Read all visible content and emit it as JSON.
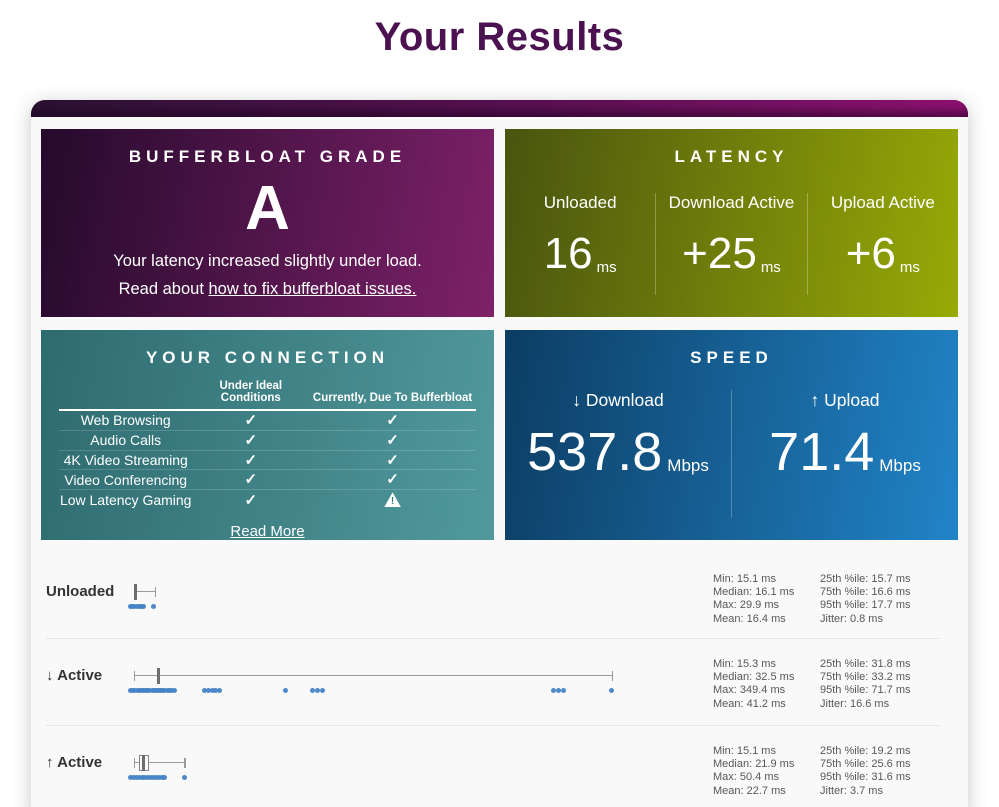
{
  "page": {
    "title": "Your Results"
  },
  "colors": {
    "title_text": "#4b1150",
    "grade_card_gradient": [
      "#250a2c",
      "#7e2169"
    ],
    "latency_card_gradient": [
      "#49540f",
      "#97aa06"
    ],
    "connection_card_gradient": [
      "#2e6b6f",
      "#51999d"
    ],
    "speed_card_gradient": [
      "#0c3d63",
      "#2184c8"
    ],
    "top_bar_gradient": [
      "#2b1133",
      "#8d1170"
    ],
    "dot_blue": "#4583c6"
  },
  "icons": {
    "check": "✓",
    "warning": "!",
    "down_arrow": "↓",
    "up_arrow": "↑"
  },
  "grade_card": {
    "title": "BUFFERBLOAT GRADE",
    "grade": "A",
    "description": "Your latency increased slightly under load.",
    "link_prefix": "Read about ",
    "link_text": "how to fix bufferbloat issues."
  },
  "latency_card": {
    "title": "LATENCY",
    "columns": [
      {
        "label": "Unloaded",
        "value": "16",
        "unit": "ms"
      },
      {
        "label": "Download Active",
        "value": "+25",
        "unit": "ms"
      },
      {
        "label": "Upload Active",
        "value": "+6",
        "unit": "ms"
      }
    ]
  },
  "connection_card": {
    "title": "YOUR CONNECTION",
    "col_headers": [
      "Under Ideal Conditions",
      "Currently, Due To Bufferbloat"
    ],
    "rows": [
      {
        "label": "Web Browsing",
        "ideal": "check",
        "current": "check"
      },
      {
        "label": "Audio Calls",
        "ideal": "check",
        "current": "check"
      },
      {
        "label": "4K Video Streaming",
        "ideal": "check",
        "current": "check"
      },
      {
        "label": "Video Conferencing",
        "ideal": "check",
        "current": "check"
      },
      {
        "label": "Low Latency Gaming",
        "ideal": "check",
        "current": "warning"
      }
    ],
    "read_more": "Read More"
  },
  "speed_card": {
    "title": "SPEED",
    "columns": [
      {
        "arrow": "↓",
        "label": "Download",
        "value": "537.8",
        "unit": "Mbps"
      },
      {
        "arrow": "↑",
        "label": "Upload",
        "value": "71.4",
        "unit": "Mbps"
      }
    ]
  },
  "chart_data": {
    "type": "boxplot",
    "unit": "ms",
    "axis": {
      "render_min_ms": 11.2,
      "render_max_ms": 416.8,
      "grid": false
    },
    "rows": [
      {
        "label": "Unloaded",
        "box": {
          "min": 15.1,
          "q25": 15.7,
          "median": 16.1,
          "q75": 16.6,
          "max": 29.9
        },
        "stats": {
          "min": 15.1,
          "median": 16.1,
          "max": 29.9,
          "mean": 16.4,
          "p25": 15.7,
          "p75": 16.6,
          "p95": 17.7,
          "jitter": 0.8
        },
        "dots": [
          13,
          14.5,
          16,
          17.5,
          19,
          20.5,
          22,
          28.7
        ],
        "stats_col1": [
          "Min: 15.1 ms",
          "Median: 16.1 ms",
          "Max: 29.9 ms",
          "Mean: 16.4 ms"
        ],
        "stats_col2": [
          "25th %ile: 15.7 ms",
          "75th %ile: 16.6 ms",
          "95th %ile: 17.7 ms",
          "Jitter: 0.8 ms"
        ]
      },
      {
        "label": "↓ Active",
        "box": {
          "min": 15.3,
          "q25": 31.8,
          "median": 32.5,
          "q75": 33.2,
          "max": 349.4
        },
        "stats": {
          "min": 15.3,
          "median": 32.5,
          "max": 349.4,
          "mean": 41.2,
          "p25": 31.8,
          "p75": 33.2,
          "p95": 71.7,
          "jitter": 16.6
        },
        "dots": [
          13,
          14.5,
          16,
          17.5,
          19,
          20.5,
          22,
          23.5,
          25,
          26.5,
          28,
          29.5,
          31,
          32.5,
          34,
          35.5,
          37,
          38.5,
          40,
          41.5,
          44,
          65,
          67.5,
          70,
          72.5,
          75,
          121,
          140,
          143.5,
          147,
          308.5,
          312,
          315.5,
          349
        ],
        "stats_col1": [
          "Min: 15.3 ms",
          "Median: 32.5 ms",
          "Max: 349.4 ms",
          "Mean: 41.2 ms"
        ],
        "stats_col2": [
          "25th %ile: 31.8 ms",
          "75th %ile: 33.2 ms",
          "95th %ile: 71.7 ms",
          "Jitter: 16.6 ms"
        ]
      },
      {
        "label": "↑ Active",
        "box": {
          "min": 15.1,
          "q25": 19.2,
          "median": 21.9,
          "q75": 25.6,
          "max": 50.4
        },
        "stats": {
          "min": 15.1,
          "median": 21.9,
          "max": 50.4,
          "mean": 22.7,
          "p25": 19.2,
          "p75": 25.6,
          "p95": 31.6,
          "jitter": 3.7
        },
        "dots": [
          13,
          15,
          17,
          19,
          21,
          23,
          25,
          27,
          29,
          31,
          33,
          35,
          37,
          50.4
        ],
        "stats_col1": [
          "Min: 15.1 ms",
          "Median: 21.9 ms",
          "Max: 50.4 ms",
          "Mean: 22.7 ms"
        ],
        "stats_col2": [
          "25th %ile: 19.2 ms",
          "75th %ile: 25.6 ms",
          "95th %ile: 31.6 ms",
          "Jitter: 3.7 ms"
        ]
      }
    ]
  }
}
